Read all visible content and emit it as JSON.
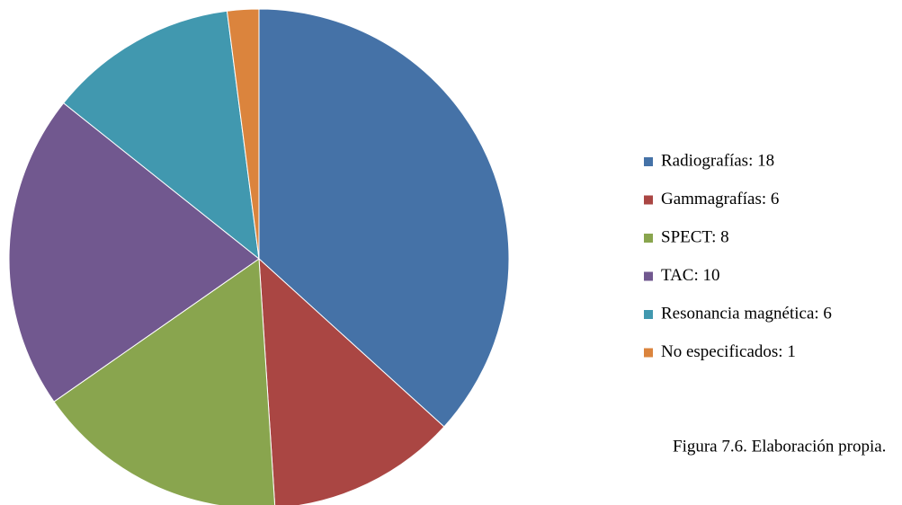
{
  "chart_data": {
    "type": "pie",
    "categories": [
      "Radiografías: 18",
      "Gammagrafías: 6",
      "SPECT: 8",
      "TAC: 10",
      "Resonancia magnética: 6",
      "No especificados: 1"
    ],
    "values": [
      18,
      6,
      8,
      10,
      6,
      1
    ],
    "colors": [
      "#4572a7",
      "#aa4643",
      "#89a54e",
      "#71588f",
      "#4198af",
      "#db843d"
    ],
    "legend": "right",
    "caption": "Figura 7.6. Elaboración propia."
  }
}
